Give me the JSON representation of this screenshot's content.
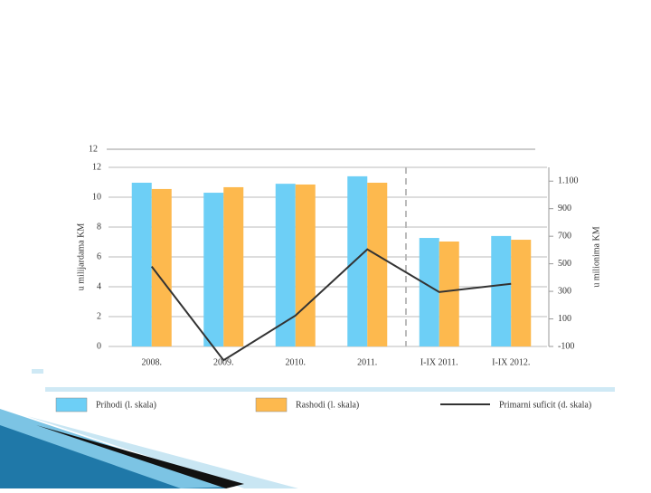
{
  "chart_data": {
    "type": "bar",
    "top_label": "12",
    "y_label": "u milijardama KM",
    "y2_label": "u milionima KM",
    "categories": [
      "2008.",
      "2009.",
      "2010.",
      "2011.",
      "I-IX 2011.",
      "I-IX 2012."
    ],
    "series": [
      {
        "name": "Prihodi (l. skala)",
        "color": "#6dcff6",
        "values": [
          10.97,
          10.3,
          10.9,
          11.4,
          7.27,
          7.4
        ]
      },
      {
        "name": "Rashodi (l. skala)",
        "color": "#fdb94e",
        "values": [
          10.55,
          10.67,
          10.85,
          10.97,
          7.03,
          7.15
        ]
      },
      {
        "name": "Primarni suficit (d. skala)",
        "color": "#333333",
        "type": "line",
        "axis": "y2",
        "values": [
          480,
          -200,
          124,
          605,
          295,
          355
        ]
      }
    ],
    "ylim": [
      0,
      12
    ],
    "yticks": [
      0,
      2,
      4,
      6,
      8,
      10,
      12
    ],
    "y2lim": [
      -100,
      1200
    ],
    "y2ticks": [
      -100,
      100,
      300,
      500,
      700,
      900,
      {
        "value": 1100,
        "label": "1.100"
      }
    ],
    "grid": true
  }
}
